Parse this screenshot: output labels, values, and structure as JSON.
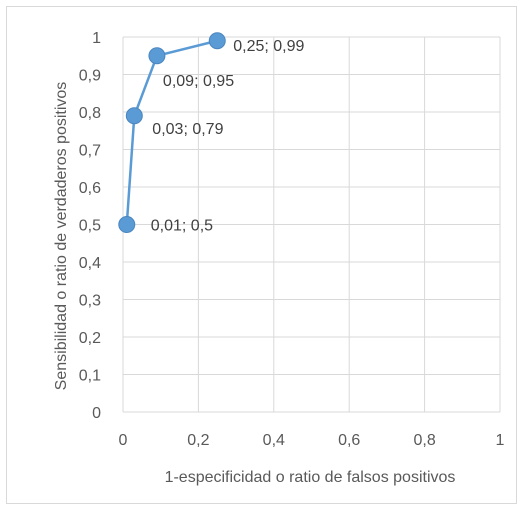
{
  "chart_data": {
    "type": "scatter",
    "title": "",
    "xlabel": "1-especificidad o ratio de falsos positivos",
    "ylabel": "Sensibilidad o ratio de verdaderos positivos",
    "xlim": [
      0,
      1
    ],
    "ylim": [
      0,
      1
    ],
    "x_ticks": [
      "0",
      "0,2",
      "0,4",
      "0,6",
      "0,8",
      "1"
    ],
    "x_tick_values": [
      0,
      0.2,
      0.4,
      0.6,
      0.8,
      1
    ],
    "y_ticks": [
      "0",
      "0,1",
      "0,2",
      "0,3",
      "0,4",
      "0,5",
      "0,6",
      "0,7",
      "0,8",
      "0,9",
      "1"
    ],
    "y_tick_values": [
      0,
      0.1,
      0.2,
      0.3,
      0.4,
      0.5,
      0.6,
      0.7,
      0.8,
      0.9,
      1
    ],
    "grid": true,
    "connected": true,
    "color": "#5b9bd5",
    "series": [
      {
        "x": [
          0.01,
          0.03,
          0.09,
          0.25
        ],
        "y": [
          0.5,
          0.79,
          0.95,
          0.99
        ],
        "labels": [
          "0,01; 0,5",
          "0,03; 0,79",
          "0,09; 0,95",
          "0,25; 0,99"
        ]
      }
    ]
  }
}
